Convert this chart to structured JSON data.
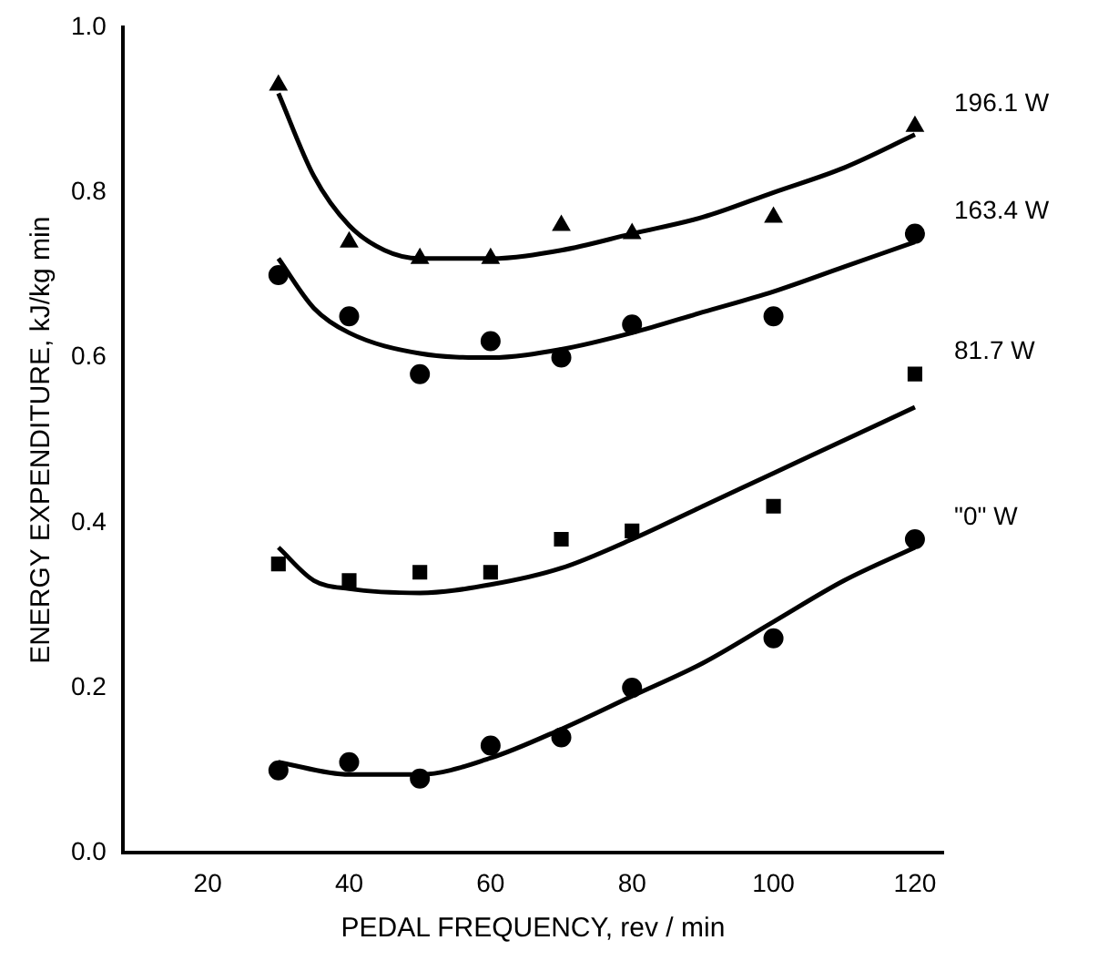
{
  "chart_data": {
    "type": "scatter",
    "xlabel": "PEDAL FREQUENCY, rev / min",
    "ylabel": "ENERGY EXPENDITURE, kJ/kg min",
    "xlim": [
      8,
      124
    ],
    "xticks": [
      20,
      40,
      60,
      80,
      100,
      120
    ],
    "ylim": [
      0,
      1
    ],
    "yticks": [
      {
        "value": 0,
        "label": "0.0"
      },
      0.2,
      0.4,
      0.6,
      0.8,
      {
        "value": 1,
        "label": "1.0"
      }
    ],
    "grid": false,
    "legend": false,
    "series": [
      {
        "name": "196.1 W",
        "type": "scatter",
        "marker": "triangle",
        "color": "#000000",
        "x": [
          30,
          40,
          50,
          60,
          70,
          80,
          100,
          120
        ],
        "values": [
          0.93,
          0.74,
          0.72,
          0.72,
          0.76,
          0.75,
          0.77,
          0.88
        ]
      },
      {
        "name": "163.4 W",
        "type": "scatter",
        "marker": "circle",
        "color": "#000000",
        "x": [
          30,
          40,
          50,
          60,
          70,
          80,
          100,
          120
        ],
        "values": [
          0.7,
          0.65,
          0.58,
          0.62,
          0.6,
          0.64,
          0.65,
          0.75
        ]
      },
      {
        "name": "81.7 W",
        "type": "scatter",
        "marker": "square",
        "color": "#000000",
        "x": [
          30,
          40,
          50,
          60,
          70,
          80,
          100,
          120
        ],
        "values": [
          0.35,
          0.33,
          0.34,
          0.34,
          0.38,
          0.39,
          0.42,
          0.58
        ]
      },
      {
        "name": "\"0\" W",
        "type": "scatter",
        "marker": "circle",
        "color": "#000000",
        "x": [
          30,
          40,
          50,
          60,
          70,
          80,
          100,
          120
        ],
        "values": [
          0.1,
          0.11,
          0.09,
          0.13,
          0.14,
          0.2,
          0.26,
          0.38
        ]
      },
      {
        "type": "line",
        "marker": "none",
        "color": "#000000",
        "x": [
          30,
          35,
          40,
          45,
          50,
          60,
          70,
          80,
          90,
          100,
          110,
          120
        ],
        "values": [
          0.92,
          0.82,
          0.76,
          0.73,
          0.72,
          0.72,
          0.73,
          0.75,
          0.77,
          0.8,
          0.83,
          0.87
        ]
      },
      {
        "type": "line",
        "marker": "none",
        "color": "#000000",
        "x": [
          30,
          35,
          40,
          50,
          60,
          70,
          80,
          90,
          100,
          110,
          120
        ],
        "values": [
          0.72,
          0.66,
          0.63,
          0.605,
          0.6,
          0.61,
          0.63,
          0.655,
          0.68,
          0.71,
          0.74
        ]
      },
      {
        "type": "line",
        "marker": "none",
        "color": "#000000",
        "x": [
          30,
          35,
          40,
          50,
          60,
          70,
          80,
          90,
          100,
          110,
          120
        ],
        "values": [
          0.37,
          0.33,
          0.32,
          0.315,
          0.325,
          0.345,
          0.38,
          0.42,
          0.46,
          0.5,
          0.54
        ]
      },
      {
        "type": "line",
        "marker": "none",
        "color": "#000000",
        "x": [
          30,
          40,
          50,
          60,
          70,
          80,
          90,
          100,
          110,
          120
        ],
        "values": [
          0.11,
          0.095,
          0.095,
          0.115,
          0.15,
          0.19,
          0.23,
          0.28,
          0.33,
          0.37
        ]
      }
    ]
  }
}
